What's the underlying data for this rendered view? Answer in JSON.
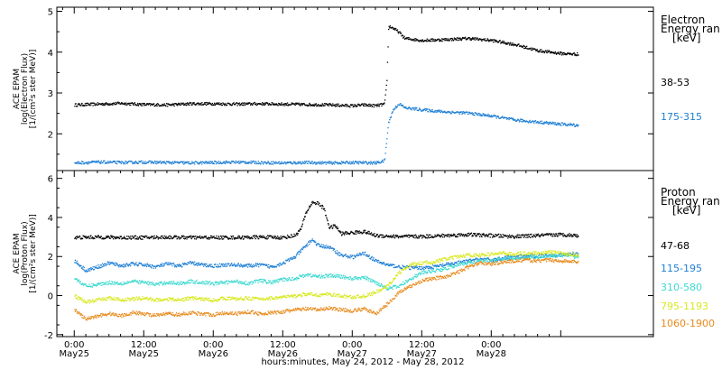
{
  "chart_data": [
    {
      "type": "scatter",
      "panel": "electron",
      "ylabel_lines": [
        "ACE EPAM",
        "log(Electron Flux)",
        "[1/(cm²s ster MeV)]"
      ],
      "ylim": [
        1.1,
        5.1
      ],
      "yticks": [
        2,
        3,
        4,
        5
      ],
      "legend_title": [
        "Electron",
        "Energy ran",
        "[keV]"
      ],
      "series": [
        {
          "name": "38-53",
          "color": "#000000",
          "points": [
            [
              0,
              2.72
            ],
            [
              4,
              2.74
            ],
            [
              8,
              2.76
            ],
            [
              12,
              2.73
            ],
            [
              16,
              2.72
            ],
            [
              20,
              2.75
            ],
            [
              24,
              2.75
            ],
            [
              28,
              2.74
            ],
            [
              32,
              2.75
            ],
            [
              36,
              2.74
            ],
            [
              40,
              2.73
            ],
            [
              44,
              2.72
            ],
            [
              48,
              2.7
            ],
            [
              50,
              2.72
            ],
            [
              52,
              2.7
            ],
            [
              53.5,
              2.74
            ],
            [
              53.9,
              3.3
            ],
            [
              54.2,
              4.65
            ],
            [
              55,
              4.6
            ],
            [
              56,
              4.5
            ],
            [
              57,
              4.35
            ],
            [
              60,
              4.3
            ],
            [
              64,
              4.32
            ],
            [
              68,
              4.35
            ],
            [
              72,
              4.3
            ],
            [
              76,
              4.2
            ],
            [
              80,
              4.05
            ],
            [
              84,
              3.98
            ],
            [
              87,
              3.96
            ]
          ]
        },
        {
          "name": "175-315",
          "color": "#1e7fd4",
          "points": [
            [
              0,
              1.3
            ],
            [
              4,
              1.32
            ],
            [
              8,
              1.31
            ],
            [
              12,
              1.32
            ],
            [
              16,
              1.31
            ],
            [
              20,
              1.3
            ],
            [
              24,
              1.31
            ],
            [
              28,
              1.32
            ],
            [
              32,
              1.31
            ],
            [
              36,
              1.3
            ],
            [
              40,
              1.31
            ],
            [
              44,
              1.3
            ],
            [
              48,
              1.31
            ],
            [
              52,
              1.3
            ],
            [
              53.5,
              1.35
            ],
            [
              54.2,
              2.3
            ],
            [
              55,
              2.6
            ],
            [
              56,
              2.75
            ],
            [
              57,
              2.65
            ],
            [
              60,
              2.6
            ],
            [
              64,
              2.55
            ],
            [
              68,
              2.52
            ],
            [
              72,
              2.45
            ],
            [
              76,
              2.35
            ],
            [
              80,
              2.3
            ],
            [
              84,
              2.25
            ],
            [
              87,
              2.22
            ]
          ]
        }
      ]
    },
    {
      "type": "scatter",
      "panel": "proton",
      "ylabel_lines": [
        "ACE EPAM",
        "log(Proton Flux)",
        "[1/(cm²s ster MeV)]"
      ],
      "ylim": [
        -2.1,
        6.4
      ],
      "yticks": [
        -2,
        0,
        2,
        4,
        6
      ],
      "legend_title": [
        "Proton",
        "Energy ran",
        "[keV]"
      ],
      "series": [
        {
          "name": "47-68",
          "color": "#000000",
          "points": [
            [
              0,
              3.0
            ],
            [
              4,
              3.02
            ],
            [
              8,
              3.0
            ],
            [
              12,
              3.0
            ],
            [
              16,
              3.02
            ],
            [
              20,
              3.0
            ],
            [
              24,
              3.0
            ],
            [
              28,
              3.0
            ],
            [
              32,
              3.02
            ],
            [
              36,
              3.0
            ],
            [
              38,
              3.1
            ],
            [
              39,
              3.4
            ],
            [
              40,
              4.3
            ],
            [
              41,
              4.8
            ],
            [
              42,
              4.75
            ],
            [
              43,
              4.5
            ],
            [
              44,
              3.5
            ],
            [
              45,
              3.6
            ],
            [
              46,
              3.2
            ],
            [
              48,
              3.25
            ],
            [
              50,
              3.3
            ],
            [
              52,
              3.1
            ],
            [
              56,
              3.05
            ],
            [
              60,
              3.05
            ],
            [
              64,
              3.1
            ],
            [
              68,
              3.15
            ],
            [
              72,
              3.1
            ],
            [
              76,
              3.05
            ],
            [
              80,
              3.1
            ],
            [
              84,
              3.15
            ],
            [
              87,
              3.1
            ]
          ]
        },
        {
          "name": "115-195",
          "color": "#1e7fd4",
          "points": [
            [
              0,
              1.8
            ],
            [
              2,
              1.3
            ],
            [
              4,
              1.5
            ],
            [
              6,
              1.7
            ],
            [
              8,
              1.55
            ],
            [
              10,
              1.65
            ],
            [
              12,
              1.6
            ],
            [
              14,
              1.5
            ],
            [
              16,
              1.65
            ],
            [
              18,
              1.55
            ],
            [
              20,
              1.7
            ],
            [
              22,
              1.6
            ],
            [
              24,
              1.55
            ],
            [
              26,
              1.6
            ],
            [
              28,
              1.6
            ],
            [
              30,
              1.55
            ],
            [
              32,
              1.6
            ],
            [
              34,
              1.5
            ],
            [
              36,
              1.7
            ],
            [
              38,
              2.0
            ],
            [
              40,
              2.6
            ],
            [
              41,
              2.9
            ],
            [
              42,
              2.6
            ],
            [
              44,
              2.5
            ],
            [
              46,
              2.1
            ],
            [
              48,
              2.0
            ],
            [
              50,
              2.2
            ],
            [
              52,
              1.8
            ],
            [
              54,
              1.6
            ],
            [
              56,
              1.5
            ],
            [
              58,
              1.45
            ],
            [
              60,
              1.45
            ],
            [
              62,
              1.5
            ],
            [
              64,
              1.6
            ],
            [
              66,
              1.7
            ],
            [
              68,
              1.8
            ],
            [
              70,
              1.9
            ],
            [
              72,
              1.85
            ],
            [
              74,
              1.95
            ],
            [
              76,
              2.0
            ],
            [
              78,
              2.05
            ],
            [
              80,
              2.05
            ],
            [
              82,
              2.1
            ],
            [
              84,
              2.1
            ],
            [
              87,
              2.2
            ]
          ]
        },
        {
          "name": "310-580",
          "color": "#3dd9d0",
          "points": [
            [
              0,
              0.9
            ],
            [
              2,
              0.5
            ],
            [
              4,
              0.6
            ],
            [
              6,
              0.7
            ],
            [
              8,
              0.65
            ],
            [
              10,
              0.75
            ],
            [
              12,
              0.7
            ],
            [
              14,
              0.6
            ],
            [
              16,
              0.7
            ],
            [
              18,
              0.65
            ],
            [
              20,
              0.75
            ],
            [
              22,
              0.7
            ],
            [
              24,
              0.65
            ],
            [
              26,
              0.7
            ],
            [
              28,
              0.75
            ],
            [
              30,
              0.65
            ],
            [
              32,
              0.8
            ],
            [
              34,
              0.7
            ],
            [
              36,
              0.85
            ],
            [
              38,
              0.9
            ],
            [
              40,
              1.1
            ],
            [
              42,
              1.0
            ],
            [
              44,
              1.05
            ],
            [
              46,
              1.0
            ],
            [
              48,
              0.9
            ],
            [
              50,
              0.95
            ],
            [
              52,
              0.7
            ],
            [
              54,
              0.4
            ],
            [
              56,
              0.5
            ],
            [
              58,
              0.9
            ],
            [
              60,
              1.2
            ],
            [
              62,
              1.3
            ],
            [
              64,
              1.4
            ],
            [
              66,
              1.6
            ],
            [
              68,
              1.7
            ],
            [
              70,
              1.8
            ],
            [
              72,
              1.8
            ],
            [
              74,
              1.9
            ],
            [
              76,
              1.95
            ],
            [
              78,
              2.0
            ],
            [
              80,
              2.0
            ],
            [
              82,
              2.05
            ],
            [
              84,
              2.1
            ],
            [
              87,
              2.0
            ]
          ]
        },
        {
          "name": "795-1193",
          "color": "#d7e81f",
          "points": [
            [
              0,
              0.0
            ],
            [
              2,
              -0.3
            ],
            [
              4,
              -0.2
            ],
            [
              6,
              -0.1
            ],
            [
              8,
              -0.2
            ],
            [
              10,
              -0.15
            ],
            [
              12,
              -0.1
            ],
            [
              14,
              -0.2
            ],
            [
              16,
              -0.15
            ],
            [
              18,
              -0.2
            ],
            [
              20,
              -0.1
            ],
            [
              22,
              -0.15
            ],
            [
              24,
              -0.2
            ],
            [
              26,
              -0.1
            ],
            [
              28,
              -0.15
            ],
            [
              30,
              -0.1
            ],
            [
              32,
              -0.15
            ],
            [
              34,
              -0.1
            ],
            [
              36,
              -0.05
            ],
            [
              38,
              0.0
            ],
            [
              40,
              0.1
            ],
            [
              42,
              0.05
            ],
            [
              44,
              0.1
            ],
            [
              46,
              0.0
            ],
            [
              48,
              -0.05
            ],
            [
              50,
              0.0
            ],
            [
              52,
              0.2
            ],
            [
              54,
              0.5
            ],
            [
              56,
              1.2
            ],
            [
              58,
              1.6
            ],
            [
              60,
              1.7
            ],
            [
              62,
              1.75
            ],
            [
              64,
              1.9
            ],
            [
              66,
              2.0
            ],
            [
              68,
              2.1
            ],
            [
              70,
              2.1
            ],
            [
              72,
              2.15
            ],
            [
              74,
              2.2
            ],
            [
              76,
              2.15
            ],
            [
              78,
              2.2
            ],
            [
              80,
              2.2
            ],
            [
              82,
              2.25
            ],
            [
              84,
              2.2
            ],
            [
              87,
              2.1
            ]
          ]
        },
        {
          "name": "1060-1900",
          "color": "#e88a1c",
          "points": [
            [
              0,
              -0.7
            ],
            [
              2,
              -1.2
            ],
            [
              4,
              -1.0
            ],
            [
              6,
              -0.9
            ],
            [
              8,
              -1.0
            ],
            [
              10,
              -0.85
            ],
            [
              12,
              -0.9
            ],
            [
              14,
              -1.0
            ],
            [
              16,
              -0.9
            ],
            [
              18,
              -0.95
            ],
            [
              20,
              -0.85
            ],
            [
              22,
              -0.9
            ],
            [
              24,
              -0.95
            ],
            [
              26,
              -0.85
            ],
            [
              28,
              -0.9
            ],
            [
              30,
              -0.8
            ],
            [
              32,
              -0.9
            ],
            [
              34,
              -0.85
            ],
            [
              36,
              -0.8
            ],
            [
              38,
              -0.7
            ],
            [
              40,
              -0.65
            ],
            [
              42,
              -0.7
            ],
            [
              44,
              -0.6
            ],
            [
              46,
              -0.7
            ],
            [
              48,
              -0.75
            ],
            [
              50,
              -0.65
            ],
            [
              52,
              -0.9
            ],
            [
              54,
              -0.4
            ],
            [
              56,
              0.2
            ],
            [
              58,
              0.5
            ],
            [
              60,
              0.8
            ],
            [
              62,
              0.9
            ],
            [
              64,
              1.0
            ],
            [
              66,
              1.2
            ],
            [
              68,
              1.5
            ],
            [
              70,
              1.7
            ],
            [
              72,
              1.65
            ],
            [
              74,
              1.75
            ],
            [
              76,
              1.8
            ],
            [
              78,
              1.85
            ],
            [
              80,
              1.8
            ],
            [
              82,
              1.85
            ],
            [
              84,
              1.8
            ],
            [
              87,
              1.75
            ]
          ]
        }
      ]
    }
  ],
  "x_axis": {
    "xlim": [
      -3,
      100
    ],
    "major_ticks": [
      {
        "t": 0,
        "time": "0:00",
        "date": "May25"
      },
      {
        "t": 12,
        "time": "12:00",
        "date": "May25"
      },
      {
        "t": 24,
        "time": "0:00",
        "date": "May26"
      },
      {
        "t": 36,
        "time": "12:00",
        "date": "May26"
      },
      {
        "t": 48,
        "time": "0:00",
        "date": "May27"
      },
      {
        "t": 60,
        "time": "12:00",
        "date": "May27"
      },
      {
        "t": 72,
        "time": "0:00",
        "date": "May28"
      }
    ],
    "label": "hours:minutes, May 24, 2012 - May 28, 2012"
  }
}
